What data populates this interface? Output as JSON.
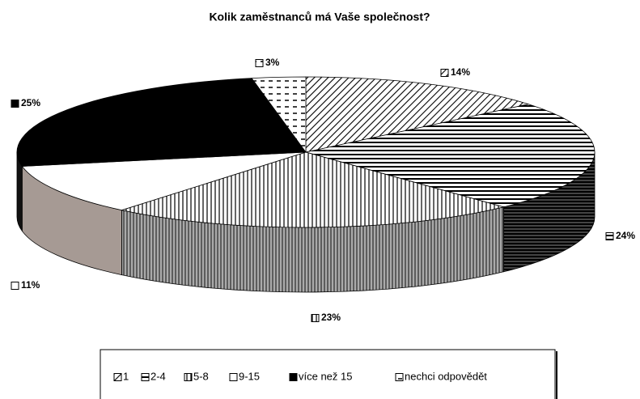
{
  "chart_data": {
    "type": "pie3d",
    "title": "Kolik zaměstnanců má Vaše společnost?",
    "categories": [
      "1",
      "2-4",
      "5-8",
      "9-15",
      "více než 15",
      "nechci odpovědět"
    ],
    "values": [
      14,
      24,
      23,
      11,
      25,
      3
    ],
    "value_labels": [
      "14%",
      "24%",
      "23%",
      "11%",
      "25%",
      "3%"
    ],
    "legend": "bottom"
  }
}
